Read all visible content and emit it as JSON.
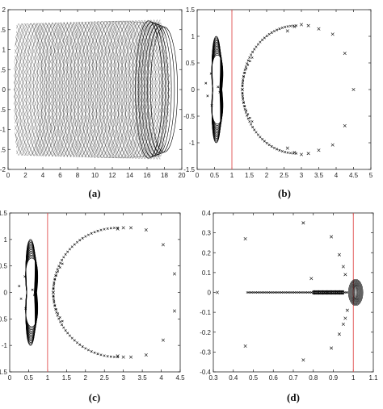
{
  "figure": {
    "ref_line_color": "#e05050",
    "marker_color": "#000000"
  },
  "chart_data": [
    {
      "id": "a",
      "type": "scatter",
      "caption": "(a)",
      "xlim": [
        0,
        20
      ],
      "ylim": [
        -2,
        2
      ],
      "x_ticks": [
        "0",
        "2",
        "4",
        "6",
        "8",
        "10",
        "12",
        "14",
        "16",
        "18",
        "20"
      ],
      "y_ticks": [
        "-2",
        "-1.5",
        "-1",
        "-0.5",
        "0",
        "0.5",
        "1",
        "1.5",
        "2"
      ],
      "grid": false,
      "description_of_marks": "dense lattice of trajectories forming a barrel shape",
      "ref_line_x": null
    },
    {
      "id": "b",
      "type": "scatter",
      "caption": "(b)",
      "xlim": [
        0,
        5
      ],
      "ylim": [
        -1.5,
        1.5
      ],
      "x_ticks": [
        "0",
        "0.5",
        "1",
        "1.5",
        "2",
        "2.5",
        "3",
        "3.5",
        "4",
        "4.5",
        "5"
      ],
      "y_ticks": [
        "-1.5",
        "-1",
        "-0.5",
        "0",
        "0.5",
        "1",
        "1.5"
      ],
      "grid": false,
      "ref_line_x": 1,
      "outer_points": {
        "x": [
          1.3,
          2.6,
          2.8,
          3.0,
          3.2,
          3.5,
          3.9,
          4.25,
          4.5,
          4.25,
          3.9,
          3.5,
          3.2,
          3.0,
          2.8,
          2.6
        ],
        "y": [
          0.0,
          1.1,
          1.18,
          1.22,
          1.2,
          1.14,
          1.04,
          0.68,
          0.0,
          -0.68,
          -1.04,
          -1.14,
          -1.2,
          -1.22,
          -1.18,
          -1.1
        ]
      }
    },
    {
      "id": "c",
      "type": "scatter",
      "caption": "(c)",
      "xlim": [
        0,
        4.5
      ],
      "ylim": [
        -1.5,
        1.5
      ],
      "x_ticks": [
        "0",
        "0.5",
        "1",
        "1.5",
        "2",
        "2.5",
        "3",
        "3.5",
        "4",
        "4.5"
      ],
      "y_ticks": [
        "-1.5",
        "-1",
        "-0.5",
        "0",
        "0.5",
        "1",
        "1.5"
      ],
      "grid": false,
      "ref_line_x": 1,
      "outer_points": {
        "x": [
          1.15,
          2.85,
          3.0,
          3.2,
          3.6,
          4.05,
          4.35,
          4.35,
          4.05,
          3.6,
          3.2,
          3.0,
          2.85
        ],
        "y": [
          0.0,
          1.2,
          1.22,
          1.22,
          1.18,
          0.9,
          0.35,
          -0.35,
          -0.9,
          -1.18,
          -1.22,
          -1.22,
          -1.2
        ]
      }
    },
    {
      "id": "d",
      "type": "scatter",
      "caption": "(d)",
      "xlim": [
        0.3,
        1.1
      ],
      "ylim": [
        -0.4,
        0.4
      ],
      "x_ticks": [
        "0.3",
        "0.4",
        "0.5",
        "0.6",
        "0.7",
        "0.8",
        "0.9",
        "1",
        "1.1"
      ],
      "y_ticks": [
        "-0.4",
        "-0.3",
        "-0.2",
        "-0.1",
        "0",
        "0.1",
        "0.2",
        "0.3",
        "0.4"
      ],
      "grid": false,
      "ref_line_x": 1,
      "outer_points": {
        "x": [
          0.32,
          0.46,
          0.46,
          0.75,
          0.75,
          0.79,
          0.89,
          0.89,
          0.87,
          0.93,
          0.95,
          0.96,
          0.97,
          0.96,
          0.95,
          0.93
        ],
        "y": [
          0.0,
          0.27,
          -0.27,
          0.35,
          -0.34,
          0.07,
          0.28,
          -0.28,
          0.0,
          0.19,
          0.13,
          0.09,
          -0.09,
          -0.13,
          -0.16,
          -0.21
        ]
      }
    }
  ]
}
